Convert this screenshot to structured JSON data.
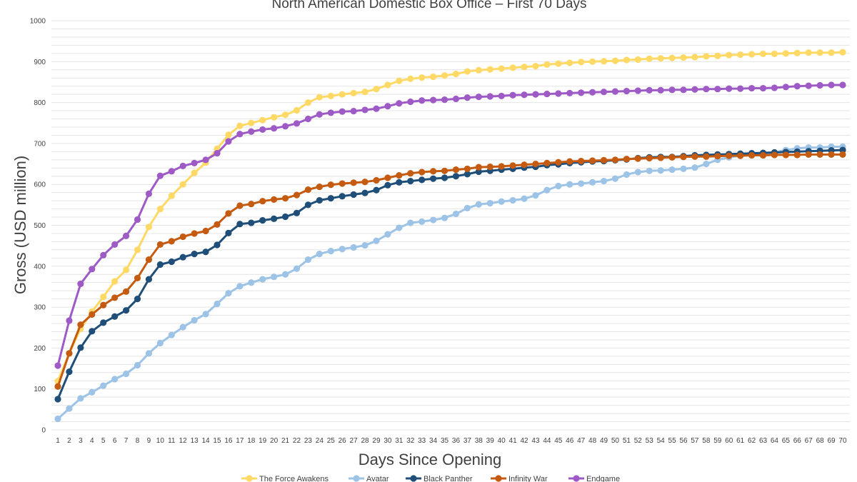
{
  "chart_data": {
    "type": "line",
    "title": "North American Domestic Box Office – First 70 Days",
    "xlabel": "Days Since Opening",
    "ylabel": "Gross (USD million)",
    "ylim": [
      0,
      1000
    ],
    "yticks": [
      0,
      100,
      200,
      300,
      400,
      500,
      600,
      700,
      800,
      900,
      1000
    ],
    "x": [
      1,
      2,
      3,
      4,
      5,
      6,
      7,
      8,
      9,
      10,
      11,
      12,
      13,
      14,
      15,
      16,
      17,
      18,
      19,
      20,
      21,
      22,
      23,
      24,
      25,
      26,
      27,
      28,
      29,
      30,
      31,
      32,
      33,
      34,
      35,
      36,
      37,
      38,
      39,
      40,
      41,
      42,
      43,
      44,
      45,
      46,
      47,
      48,
      49,
      50,
      51,
      52,
      53,
      54,
      55,
      56,
      57,
      58,
      59,
      60,
      61,
      62,
      63,
      64,
      65,
      66,
      67,
      68,
      69,
      70
    ],
    "grid": "horizontal",
    "legend_position": "bottom",
    "series": [
      {
        "name": "The Force Awakens",
        "color": "#FFD966",
        "values": [
          119,
          187,
          247,
          289,
          325,
          363,
          391,
          440,
          496,
          540,
          572,
          600,
          628,
          653,
          687,
          721,
          743,
          750,
          757,
          764,
          770,
          781,
          800,
          813,
          816,
          820,
          823,
          826,
          833,
          843,
          853,
          858,
          861,
          863,
          866,
          870,
          876,
          879,
          881,
          883,
          885,
          887,
          889,
          893,
          895,
          897,
          899,
          900,
          901,
          902,
          904,
          905,
          907,
          908,
          909,
          910,
          911,
          913,
          914,
          916,
          917,
          918,
          919,
          919,
          920,
          921,
          922,
          922,
          922,
          923
        ]
      },
      {
        "name": "Avatar",
        "color": "#9DC3E6",
        "values": [
          27,
          52,
          77,
          92,
          108,
          124,
          137,
          158,
          187,
          212,
          232,
          251,
          268,
          283,
          308,
          334,
          351,
          360,
          368,
          374,
          380,
          394,
          416,
          430,
          437,
          442,
          446,
          451,
          462,
          478,
          494,
          506,
          509,
          513,
          518,
          528,
          542,
          551,
          554,
          558,
          561,
          565,
          573,
          586,
          596,
          600,
          602,
          605,
          608,
          614,
          624,
          630,
          633,
          634,
          636,
          638,
          641,
          650,
          660,
          666,
          670,
          673,
          676,
          678,
          684,
          688,
          690,
          690,
          692,
          692
        ]
      },
      {
        "name": "Black Panther",
        "color": "#1F4E79",
        "values": [
          75,
          142,
          201,
          241,
          262,
          277,
          292,
          320,
          368,
          404,
          411,
          422,
          430,
          435,
          452,
          481,
          503,
          506,
          512,
          516,
          521,
          530,
          550,
          561,
          566,
          571,
          575,
          579,
          586,
          598,
          605,
          608,
          611,
          614,
          616,
          620,
          625,
          631,
          633,
          636,
          638,
          641,
          643,
          647,
          649,
          652,
          654,
          656,
          657,
          659,
          661,
          664,
          666,
          667,
          667,
          669,
          671,
          672,
          673,
          674,
          675,
          676,
          677,
          678,
          679,
          680,
          681,
          682,
          683,
          684
        ]
      },
      {
        "name": "Infinity War",
        "color": "#C55A11",
        "values": [
          106,
          187,
          257,
          282,
          305,
          323,
          338,
          371,
          416,
          453,
          461,
          472,
          480,
          486,
          502,
          529,
          548,
          552,
          559,
          563,
          566,
          574,
          587,
          594,
          599,
          602,
          604,
          606,
          610,
          616,
          622,
          627,
          630,
          632,
          633,
          636,
          638,
          642,
          643,
          644,
          646,
          648,
          650,
          652,
          654,
          656,
          657,
          658,
          659,
          660,
          662,
          663,
          664,
          665,
          666,
          667,
          668,
          668,
          669,
          670,
          670,
          671,
          671,
          672,
          672,
          672,
          673,
          673,
          673,
          673
        ]
      },
      {
        "name": "Endgame",
        "color": "#9E5BC6",
        "values": [
          157,
          267,
          357,
          393,
          427,
          453,
          474,
          514,
          577,
          621,
          632,
          645,
          652,
          660,
          676,
          705,
          723,
          729,
          734,
          737,
          742,
          749,
          760,
          771,
          775,
          778,
          779,
          782,
          785,
          791,
          798,
          802,
          805,
          806,
          807,
          809,
          812,
          814,
          815,
          816,
          818,
          819,
          820,
          821,
          822,
          823,
          824,
          825,
          826,
          827,
          828,
          829,
          830,
          830,
          831,
          831,
          832,
          833,
          833,
          834,
          834,
          835,
          835,
          836,
          838,
          840,
          841,
          842,
          843,
          843
        ]
      }
    ]
  }
}
